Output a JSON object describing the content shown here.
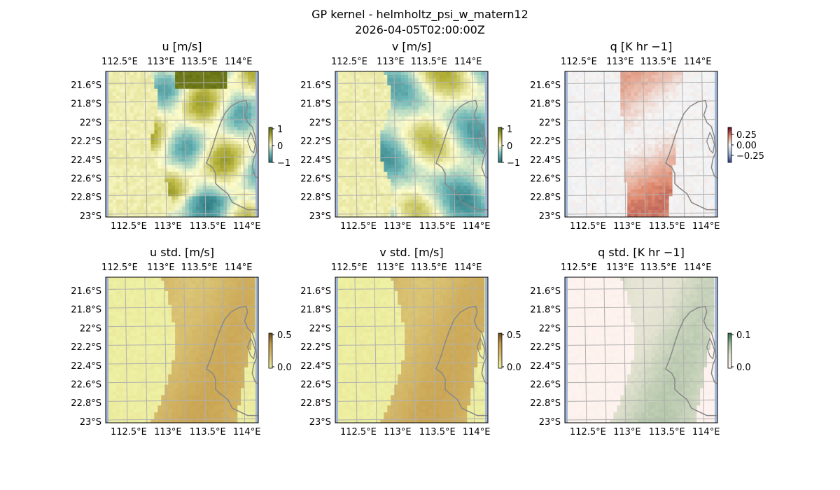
{
  "figure": {
    "title": "GP kernel - helmholtz_psi_w_matern12",
    "subtitle": "2026-04-05T02:00:00Z"
  },
  "chart_data": [
    {
      "type": "heatmap",
      "title": "u [m/s]",
      "x_ticks": [
        "112.5°E",
        "113°E",
        "113.5°E",
        "114°E"
      ],
      "y_ticks": [
        "21.6°S",
        "21.8°S",
        "22°S",
        "22.2°S",
        "22.4°S",
        "22.6°S",
        "22.8°S",
        "23°S"
      ],
      "colorbar": {
        "ticks": [
          "1",
          "0",
          "−1"
        ],
        "colormap": "diverging-teal-olive"
      }
    },
    {
      "type": "heatmap",
      "title": "v [m/s]",
      "x_ticks": [
        "112.5°E",
        "113°E",
        "113.5°E",
        "114°E"
      ],
      "y_ticks": [
        "21.6°S",
        "21.8°S",
        "22°S",
        "22.2°S",
        "22.4°S",
        "22.6°S",
        "22.8°S",
        "23°S"
      ],
      "colorbar": {
        "ticks": [
          "1",
          "0",
          "−1"
        ],
        "colormap": "diverging-teal-olive"
      }
    },
    {
      "type": "heatmap",
      "title": "q [K hr −1]",
      "x_ticks": [
        "112.5°E",
        "113°E",
        "113.5°E",
        "114°E"
      ],
      "y_ticks": [
        "21.6°S",
        "21.8°S",
        "22°S",
        "22.2°S",
        "22.4°S",
        "22.6°S",
        "22.8°S",
        "23°S"
      ],
      "colorbar": {
        "ticks": [
          "0.25",
          "0.00",
          "−0.25"
        ],
        "colormap": "diverging-blue-red"
      }
    },
    {
      "type": "heatmap",
      "title": "u std. [m/s]",
      "x_ticks": [
        "112.5°E",
        "113°E",
        "113.5°E",
        "114°E"
      ],
      "y_ticks": [
        "21.6°S",
        "21.8°S",
        "22°S",
        "22.2°S",
        "22.4°S",
        "22.6°S",
        "22.8°S",
        "23°S"
      ],
      "colorbar": {
        "ticks": [
          "0.5",
          "0.0"
        ],
        "colormap": "sequential-yellow-brown"
      }
    },
    {
      "type": "heatmap",
      "title": "v std. [m/s]",
      "x_ticks": [
        "112.5°E",
        "113°E",
        "113.5°E",
        "114°E"
      ],
      "y_ticks": [
        "21.6°S",
        "21.8°S",
        "22°S",
        "22.2°S",
        "22.4°S",
        "22.6°S",
        "22.8°S",
        "23°S"
      ],
      "colorbar": {
        "ticks": [
          "0.5",
          "0.0"
        ],
        "colormap": "sequential-yellow-brown"
      }
    },
    {
      "type": "heatmap",
      "title": "q std. [K hr −1]",
      "x_ticks": [
        "112.5°E",
        "113°E",
        "113.5°E",
        "114°E"
      ],
      "y_ticks": [
        "21.6°S",
        "21.8°S",
        "22°S",
        "22.2°S",
        "22.4°S",
        "22.6°S",
        "22.8°S",
        "23°S"
      ],
      "colorbar": {
        "ticks": [
          "0.1",
          "0.0"
        ],
        "colormap": "sequential-pink-green"
      }
    }
  ]
}
